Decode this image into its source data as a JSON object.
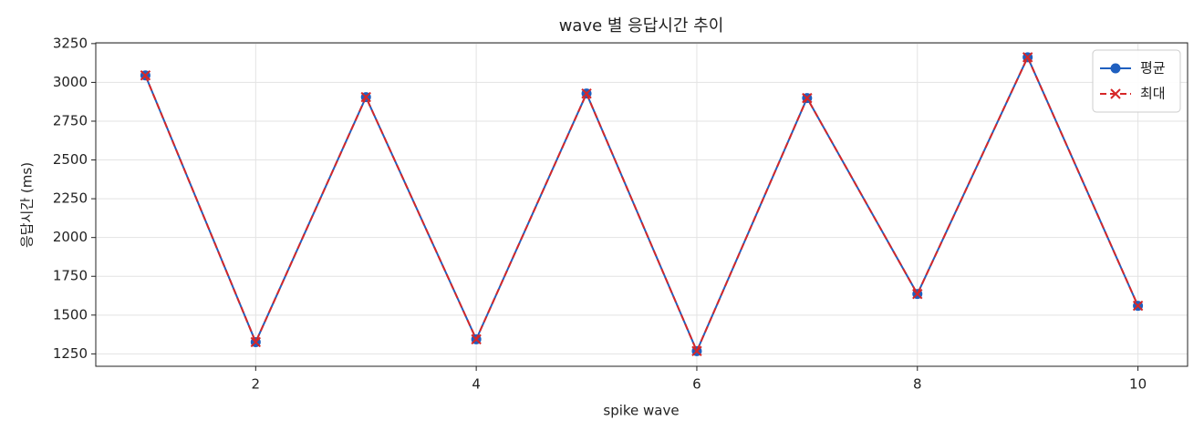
{
  "chart_data": {
    "type": "line",
    "title": "wave 별 응답시간 추이",
    "x_label": "spike wave",
    "y_label": "응답시간 (ms)",
    "x": [
      1,
      2,
      3,
      4,
      5,
      6,
      7,
      8,
      9,
      10
    ],
    "series": [
      {
        "name": "평균",
        "color": "#1f5fbf",
        "marker": "circle",
        "dash": "solid",
        "values": [
          3045,
          1326,
          2905,
          1344,
          2928,
          1268,
          2899,
          1636,
          3162,
          1560
        ]
      },
      {
        "name": "최대",
        "color": "#d62728",
        "marker": "x",
        "dash": "dashed",
        "values": [
          3045,
          1326,
          2905,
          1344,
          2928,
          1268,
          2899,
          1636,
          3162,
          1560
        ]
      }
    ],
    "xlim": [
      0.55,
      10.45
    ],
    "xticks": [
      2,
      4,
      6,
      8,
      10
    ],
    "ylim": [
      1170,
      3255
    ],
    "yticks": [
      1250,
      1500,
      1750,
      2000,
      2250,
      2500,
      2750,
      3000,
      3250
    ],
    "grid": true,
    "legend": "upper-right"
  }
}
